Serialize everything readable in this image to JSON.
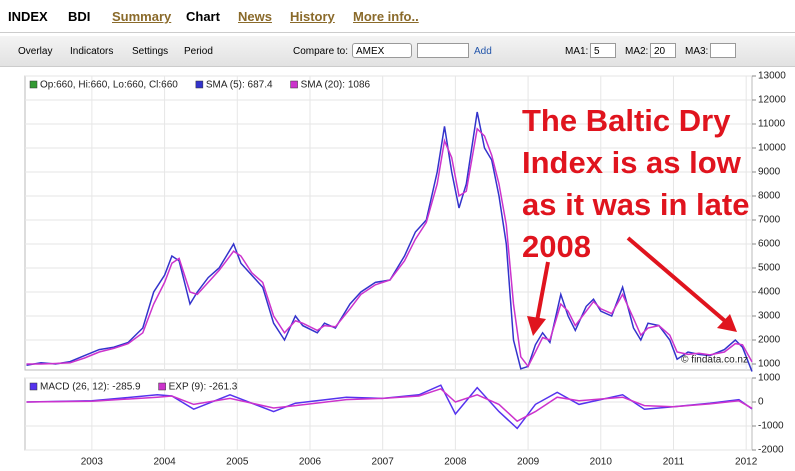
{
  "tabs": [
    "INDEX",
    "BDI",
    "Summary",
    "Chart",
    "News",
    "History",
    "More info.."
  ],
  "toolbar": {
    "menus": [
      "Overlay",
      "Indicators",
      "Settings",
      "Period"
    ],
    "compare_label": "Compare to:",
    "compare_value": "AMEX",
    "add": "Add",
    "ma": [
      {
        "label": "MA1:",
        "value": "5"
      },
      {
        "label": "MA2:",
        "value": "20"
      },
      {
        "label": "MA3:",
        "value": ""
      }
    ]
  },
  "chart_data": [
    {
      "type": "line",
      "ohlc_label": "Op:660, Hi:660, Lo:660, Cl:660",
      "ohlc_color": "#339933",
      "watermark": "© findata.co.nz",
      "annotation": [
        "The Baltic Dry",
        "Index is as low",
        "as it was in late",
        "2008"
      ],
      "x": [
        2002.1,
        2002.3,
        2002.5,
        2002.7,
        2002.9,
        2003.1,
        2003.3,
        2003.5,
        2003.7,
        2003.85,
        2004.0,
        2004.1,
        2004.2,
        2004.35,
        2004.45,
        2004.6,
        2004.75,
        2004.95,
        2005.05,
        2005.2,
        2005.35,
        2005.5,
        2005.65,
        2005.8,
        2005.9,
        2006.1,
        2006.2,
        2006.35,
        2006.55,
        2006.7,
        2006.9,
        2007.1,
        2007.3,
        2007.45,
        2007.6,
        2007.75,
        2007.85,
        2007.95,
        2008.05,
        2008.15,
        2008.3,
        2008.4,
        2008.5,
        2008.6,
        2008.7,
        2008.8,
        2008.9,
        2009.0,
        2009.1,
        2009.2,
        2009.3,
        2009.45,
        2009.55,
        2009.65,
        2009.8,
        2009.9,
        2010.0,
        2010.15,
        2010.3,
        2010.45,
        2010.55,
        2010.65,
        2010.8,
        2010.95,
        2011.05,
        2011.2,
        2011.35,
        2011.5,
        2011.7,
        2011.85,
        2011.95,
        2012.08
      ],
      "series": [
        {
          "name": "SMA (5): 687.4",
          "color": "#3333cc",
          "values": [
            950,
            1050,
            1000,
            1100,
            1350,
            1600,
            1700,
            1900,
            2500,
            4000,
            4700,
            5500,
            5300,
            3500,
            4000,
            4600,
            5000,
            6000,
            5200,
            4700,
            4200,
            2700,
            2000,
            3000,
            2600,
            2300,
            2700,
            2500,
            3500,
            4000,
            4400,
            4500,
            5500,
            6500,
            7000,
            9000,
            10900,
            9000,
            7500,
            8500,
            11500,
            10000,
            9500,
            8000,
            6000,
            2000,
            800,
            900,
            1800,
            2300,
            1900,
            3900,
            3000,
            2400,
            3400,
            3700,
            3200,
            3000,
            4200,
            2500,
            2000,
            2700,
            2600,
            2000,
            1200,
            1500,
            1400,
            1350,
            1600,
            2000,
            1700,
            687.4
          ]
        },
        {
          "name": "SMA (20): 1086",
          "color": "#cc33cc",
          "values": [
            1000,
            1000,
            1020,
            1050,
            1250,
            1500,
            1650,
            1850,
            2300,
            3500,
            4400,
            5200,
            5400,
            4000,
            3900,
            4400,
            4900,
            5700,
            5500,
            4800,
            4400,
            3000,
            2300,
            2800,
            2700,
            2400,
            2600,
            2550,
            3300,
            3900,
            4300,
            4500,
            5300,
            6200,
            6900,
            8500,
            10300,
            9600,
            8000,
            8200,
            10800,
            10500,
            9700,
            8500,
            6800,
            3500,
            1300,
            900,
            1500,
            2100,
            2000,
            3500,
            3200,
            2600,
            3200,
            3600,
            3300,
            3100,
            3900,
            2900,
            2200,
            2500,
            2600,
            2200,
            1500,
            1400,
            1450,
            1380,
            1500,
            1850,
            1800,
            1086
          ]
        }
      ],
      "xlim": [
        2002.08,
        2012.08
      ],
      "xticks": [
        2003,
        2004,
        2005,
        2006,
        2007,
        2008,
        2009,
        2010,
        2011,
        2012
      ],
      "ylim": [
        750,
        13000
      ],
      "yticks": [
        1000,
        2000,
        3000,
        4000,
        5000,
        6000,
        7000,
        8000,
        9000,
        10000,
        11000,
        12000,
        13000
      ],
      "grid": true
    },
    {
      "type": "line",
      "x": [
        2002.1,
        2003.0,
        2003.9,
        2004.1,
        2004.4,
        2004.9,
        2005.5,
        2005.8,
        2006.5,
        2007.0,
        2007.5,
        2007.8,
        2008.0,
        2008.3,
        2008.6,
        2008.85,
        2009.1,
        2009.4,
        2009.7,
        2010.3,
        2010.6,
        2011.0,
        2011.5,
        2011.9,
        2012.08
      ],
      "series": [
        {
          "name": "MACD (26, 12): -285.9",
          "color": "#5533ee",
          "values": [
            0,
            50,
            300,
            250,
            -300,
            300,
            -400,
            -50,
            200,
            150,
            300,
            700,
            -500,
            600,
            -400,
            -1100,
            -100,
            400,
            -100,
            300,
            -300,
            -200,
            -50,
            100,
            -285.9
          ]
        },
        {
          "name": "EXP (9): -261.3",
          "color": "#cc33cc",
          "values": [
            0,
            30,
            200,
            250,
            -100,
            150,
            -250,
            -150,
            100,
            150,
            250,
            550,
            0,
            300,
            -100,
            -800,
            -400,
            200,
            50,
            200,
            -150,
            -200,
            -80,
            50,
            -261.3
          ]
        }
      ],
      "xlim": [
        2002.08,
        2012.08
      ],
      "xticks": [
        2003,
        2004,
        2005,
        2006,
        2007,
        2008,
        2009,
        2010,
        2011,
        2012
      ],
      "ylim": [
        -2000,
        1000
      ],
      "yticks": [
        -2000,
        -1000,
        0,
        1000
      ],
      "grid": true
    }
  ]
}
